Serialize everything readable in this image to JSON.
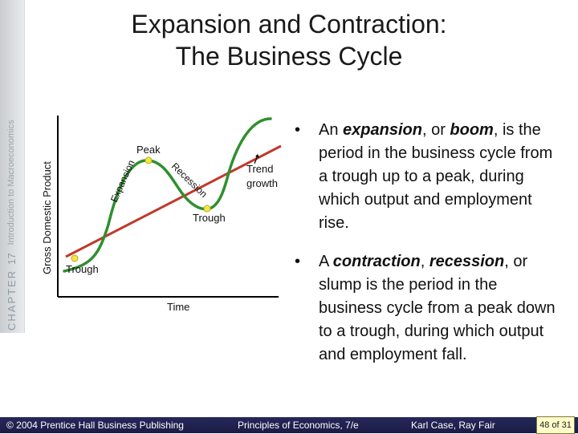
{
  "sidebar": {
    "chapter_label": "CHAPTER",
    "chapter_number": "17",
    "chapter_title": "Introduction to Macroeconomics"
  },
  "title": {
    "line1": "Expansion and Contraction:",
    "line2": "The Business Cycle"
  },
  "diagram": {
    "y_axis_label": "Gross Domestic Product",
    "x_axis_label": "Time",
    "labels": {
      "peak": "Peak",
      "trough_upper": "Trough",
      "trough_lower": "Trough",
      "expansion": "Expansion",
      "recession": "Recession",
      "trend_line1": "Trend",
      "trend_line2": "growth"
    },
    "colors": {
      "cycle_curve": "#2f8f2f",
      "trend_line": "#c0392b",
      "points": "#f5e642",
      "axes": "#000000"
    }
  },
  "bullets": [
    {
      "pre": "An ",
      "term1": "expansion",
      "mid": ", or ",
      "term2": "boom",
      "post": ", is the period in the business cycle from a trough up to a peak, during which output and employment rise."
    },
    {
      "pre": "A ",
      "term1": "contraction",
      "mid": ", ",
      "term2": "recession",
      "post": ", or slump is the period in the business cycle from a peak down to a trough, during which output and employment fall."
    }
  ],
  "footer": {
    "copyright": "© 2004 Prentice Hall Business Publishing",
    "book": "Principles of Economics, 7/e",
    "authors": "Karl Case, Ray Fair",
    "page": "48",
    "page_sep": "of",
    "page_total": "31"
  }
}
